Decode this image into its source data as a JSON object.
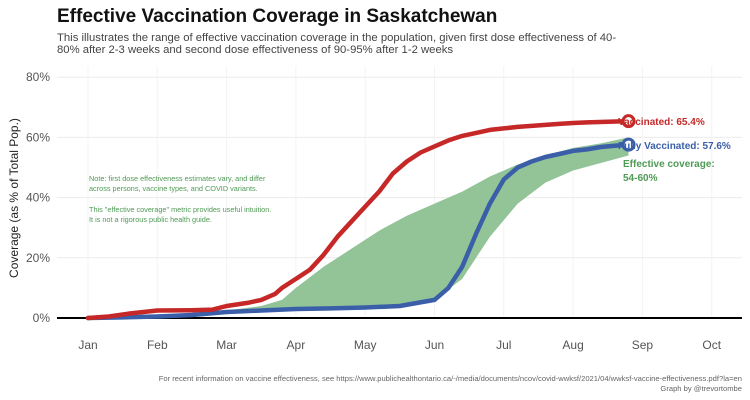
{
  "header": {
    "title": "Effective Vaccination Coverage in Saskatchewan",
    "subtitle": "This illustrates the range of effective vaccination coverage in the population, given first dose effectiveness of 40-80% after 2-3 weeks and second dose effectiveness of 90-95% after 1-2 weeks"
  },
  "footer": {
    "source": "For recent information on vaccine effectiveness, see https://www.publichealthontario.ca/-/media/documents/ncov/covid-wwksf/2021/04/wwksf-vaccine-effectiveness.pdf?la=en",
    "credit": "Graph by @trevortombe"
  },
  "notes": {
    "note1_line1": "Note: first dose effectiveness estimates vary, and differ",
    "note1_line2": "across persons, vaccine types, and COVID variants.",
    "note2_line1": "This \"effective coverage\" metric provides useful intuition.",
    "note2_line2": "It is not a rigorous public health guide."
  },
  "annotations": {
    "vaccinated": "Vaccinated: 65.4%",
    "fully": "Fully Vaccinated: 57.6%",
    "effective_line1": "Effective coverage:",
    "effective_line2": "54-60%"
  },
  "colors": {
    "vaccinated": "#c62828",
    "fully": "#3a5ea8",
    "band": "#8cc192",
    "note": "#4f9a55"
  },
  "chart_data": {
    "type": "line",
    "title": "Effective Vaccination Coverage in Saskatchewan",
    "xlabel": "",
    "ylabel": "Coverage (as % of Total Pop.)",
    "x_ticks": [
      "Jan",
      "Feb",
      "Mar",
      "Apr",
      "May",
      "Jun",
      "Jul",
      "Aug",
      "Sep",
      "Oct"
    ],
    "y_ticks": [
      "0%",
      "20%",
      "40%",
      "60%",
      "80%"
    ],
    "ylim": [
      0,
      80
    ],
    "x_unit": "month of 2021 (0 = Jan 1)",
    "xlim": [
      0,
      9.3
    ],
    "grid": true,
    "legend": "direct labels at line ends",
    "series": [
      {
        "name": "Vaccinated",
        "x": [
          0,
          0.3,
          0.6,
          1.0,
          1.5,
          1.8,
          2.0,
          2.3,
          2.5,
          2.7,
          2.8,
          3.0,
          3.2,
          3.4,
          3.6,
          3.8,
          4.0,
          4.2,
          4.4,
          4.6,
          4.8,
          5.0,
          5.2,
          5.4,
          5.6,
          5.8,
          6.0,
          6.2,
          6.5,
          6.8,
          7.0,
          7.2,
          7.5,
          7.8
        ],
        "values": [
          0,
          0.5,
          1.5,
          2.5,
          2.6,
          2.8,
          4,
          5,
          6,
          8,
          10,
          13,
          16,
          21,
          27,
          32,
          37,
          42,
          48,
          52,
          55,
          57,
          59,
          60.5,
          61.5,
          62.5,
          63,
          63.5,
          64,
          64.5,
          64.8,
          65,
          65.2,
          65.4
        ]
      },
      {
        "name": "Fully Vaccinated",
        "x": [
          0,
          0.5,
          1.0,
          1.5,
          2.0,
          2.5,
          3.0,
          3.5,
          4.0,
          4.5,
          5.0,
          5.2,
          5.4,
          5.6,
          5.8,
          6.0,
          6.2,
          6.4,
          6.6,
          6.8,
          7.0,
          7.2,
          7.4,
          7.6,
          7.8
        ],
        "values": [
          0,
          0.2,
          0.5,
          1,
          2,
          2.5,
          3,
          3.2,
          3.5,
          4,
          6,
          10,
          17,
          28,
          38,
          46,
          50,
          52,
          53.5,
          54.5,
          55.5,
          56,
          56.8,
          57.2,
          57.6
        ]
      },
      {
        "name": "Effective coverage (upper)",
        "x": [
          1.0,
          1.5,
          2.0,
          2.5,
          2.8,
          3.0,
          3.4,
          3.8,
          4.2,
          4.6,
          5.0,
          5.4,
          5.8,
          6.2,
          6.6,
          7.0,
          7.4,
          7.8
        ],
        "values": [
          1,
          1.5,
          2.5,
          4,
          6,
          10,
          17,
          23,
          29,
          34,
          38,
          42,
          47,
          51,
          54,
          56.5,
          58,
          60
        ]
      },
      {
        "name": "Effective coverage (lower)",
        "x": [
          1.0,
          1.5,
          2.0,
          2.5,
          3.0,
          3.5,
          4.0,
          4.5,
          5.0,
          5.4,
          5.8,
          6.2,
          6.6,
          7.0,
          7.4,
          7.8
        ],
        "values": [
          0.5,
          1,
          1.5,
          2,
          2.5,
          3,
          3.5,
          4,
          6,
          13,
          27,
          38,
          45,
          49,
          51.5,
          54
        ]
      }
    ]
  }
}
